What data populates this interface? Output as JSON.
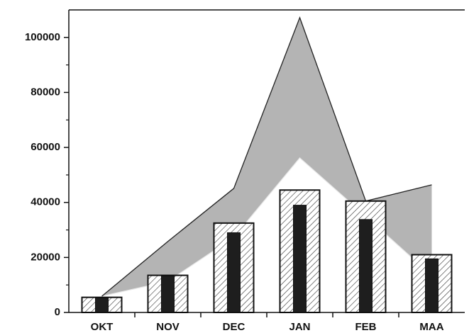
{
  "chart_data": {
    "type": "combo",
    "categories": [
      "OKT",
      "NOV",
      "DEC",
      "JAN",
      "FEB",
      "MAA"
    ],
    "band": {
      "color": "#b4b4b4",
      "upper": [
        5900,
        25800,
        45100,
        107200,
        40500,
        46400
      ],
      "lower": [
        5900,
        11300,
        27300,
        56200,
        35000,
        13400
      ]
    },
    "series": [
      {
        "color": "#ffffff",
        "hatch": true,
        "values": [
          5500,
          13500,
          32500,
          44500,
          40500,
          21000
        ]
      },
      {
        "color": "#1e1e1e",
        "hatch": false,
        "values": [
          5300,
          13300,
          29000,
          39000,
          33800,
          19500
        ]
      }
    ],
    "ylim": [
      0,
      110000
    ],
    "yticks": [
      0,
      20000,
      40000,
      60000,
      80000,
      100000
    ],
    "yminorticks": [
      10000,
      30000,
      50000,
      70000,
      90000
    ]
  }
}
